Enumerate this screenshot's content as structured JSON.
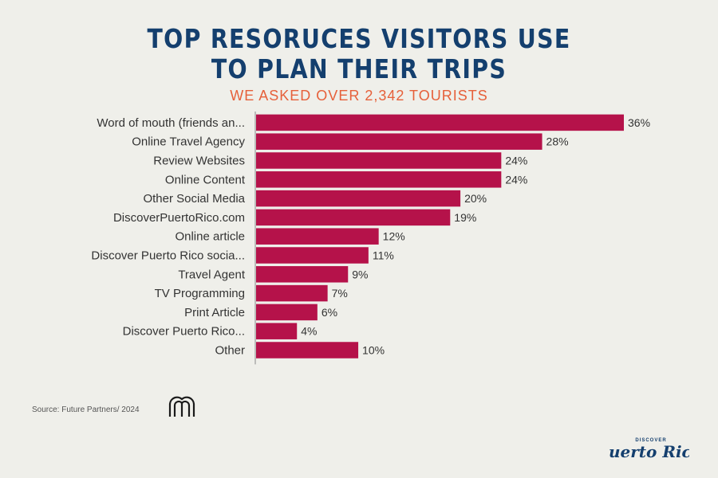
{
  "header": {
    "title_line1": "TOP RESORUCES VISITORS USE",
    "title_line2": "TO PLAN THEIR TRIPS",
    "subtitle": "WE ASKED OVER 2,342 TOURISTS"
  },
  "footer": {
    "source": "Source: Future Partners/ 2024",
    "brand_small": "DISCOVER",
    "brand_name": "Puerto Rico"
  },
  "colors": {
    "bar": "#b5124a",
    "title": "#143f6e",
    "subtitle": "#e6603a"
  },
  "chart_data": {
    "type": "bar",
    "orientation": "horizontal",
    "categories": [
      "Word of mouth (friends an...",
      "Online Travel Agency",
      "Review Websites",
      "Online Content",
      "Other Social Media",
      "DiscoverPuertoRico.com",
      "Online article",
      "Discover Puerto Rico socia...",
      "Travel Agent",
      "TV Programming",
      "Print Article",
      "Discover Puerto Rico...",
      "Other"
    ],
    "values": [
      36,
      28,
      24,
      24,
      20,
      19,
      12,
      11,
      9,
      7,
      6,
      4,
      10
    ],
    "data_labels": [
      "36%",
      "28%",
      "24%",
      "24%",
      "20%",
      "19%",
      "12%",
      "11%",
      "9%",
      "7%",
      "6%",
      "4%",
      "10%"
    ],
    "unit": "%",
    "xlim": [
      0,
      36
    ],
    "grid": false,
    "legend": "none"
  }
}
